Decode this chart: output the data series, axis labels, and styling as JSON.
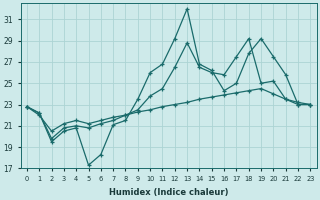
{
  "xlabel": "Humidex (Indice chaleur)",
  "bg_color": "#ceeaea",
  "grid_color": "#acd4d4",
  "line_color": "#1a6b6b",
  "xlim": [
    -0.5,
    23.5
  ],
  "ylim": [
    17,
    32.5
  ],
  "yticks": [
    17,
    19,
    21,
    23,
    25,
    27,
    29,
    31
  ],
  "xticks": [
    0,
    1,
    2,
    3,
    4,
    5,
    6,
    7,
    8,
    9,
    10,
    11,
    12,
    13,
    14,
    15,
    16,
    17,
    18,
    19,
    20,
    21,
    22,
    23
  ],
  "line1_x": [
    0,
    1,
    2,
    3,
    4,
    5,
    6,
    7,
    8,
    9,
    10,
    11,
    12,
    13,
    14,
    15,
    16,
    17,
    18,
    19,
    20,
    21,
    22,
    23
  ],
  "line1_y": [
    22.8,
    22.2,
    19.5,
    20.5,
    20.8,
    17.3,
    18.3,
    21.1,
    21.5,
    23.5,
    26.0,
    26.8,
    29.2,
    32.0,
    26.8,
    26.2,
    24.3,
    25.0,
    27.8,
    29.2,
    27.5,
    25.8,
    23.0,
    23.0
  ],
  "line2_x": [
    0,
    1,
    2,
    3,
    4,
    5,
    6,
    7,
    8,
    9,
    10,
    11,
    12,
    13,
    14,
    15,
    16,
    17,
    18,
    19,
    20,
    21,
    22,
    23
  ],
  "line2_y": [
    22.8,
    22.2,
    19.8,
    20.8,
    21.0,
    20.8,
    21.2,
    21.5,
    22.0,
    22.5,
    23.8,
    24.5,
    26.5,
    28.8,
    26.5,
    26.0,
    25.8,
    27.5,
    29.2,
    25.0,
    25.2,
    23.5,
    23.0,
    23.0
  ],
  "line3_x": [
    0,
    1,
    2,
    3,
    4,
    5,
    6,
    7,
    8,
    9,
    10,
    11,
    12,
    13,
    14,
    15,
    16,
    17,
    18,
    19,
    20,
    21,
    22,
    23
  ],
  "line3_y": [
    22.8,
    22.0,
    20.5,
    21.2,
    21.5,
    21.2,
    21.5,
    21.8,
    22.0,
    22.3,
    22.5,
    22.8,
    23.0,
    23.2,
    23.5,
    23.7,
    23.9,
    24.1,
    24.3,
    24.5,
    24.0,
    23.5,
    23.2,
    23.0
  ]
}
